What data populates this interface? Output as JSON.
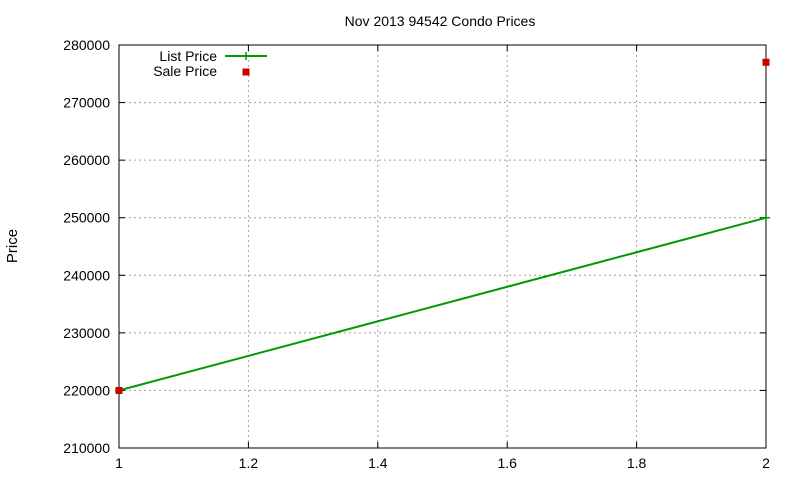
{
  "chart_data": {
    "type": "line",
    "title": "Nov 2013 94542 Condo Prices",
    "xlabel": "",
    "ylabel": "Price",
    "xlim": [
      1,
      2
    ],
    "ylim": [
      210000,
      280000
    ],
    "xticks": [
      "1",
      "1.2",
      "1.4",
      "1.6",
      "1.8",
      "2"
    ],
    "yticks": [
      "210000",
      "220000",
      "230000",
      "240000",
      "250000",
      "260000",
      "270000",
      "280000"
    ],
    "grid": true,
    "legend_position": "top-left",
    "series": [
      {
        "name": "List Price",
        "style": "line-with-points",
        "color": "#009900",
        "points": [
          {
            "x": 1,
            "y": 220000
          },
          {
            "x": 2,
            "y": 250000
          }
        ]
      },
      {
        "name": "Sale Price",
        "style": "points",
        "color": "#cc0000",
        "points": [
          {
            "x": 1,
            "y": 220000
          },
          {
            "x": 2,
            "y": 277000
          }
        ]
      }
    ]
  }
}
